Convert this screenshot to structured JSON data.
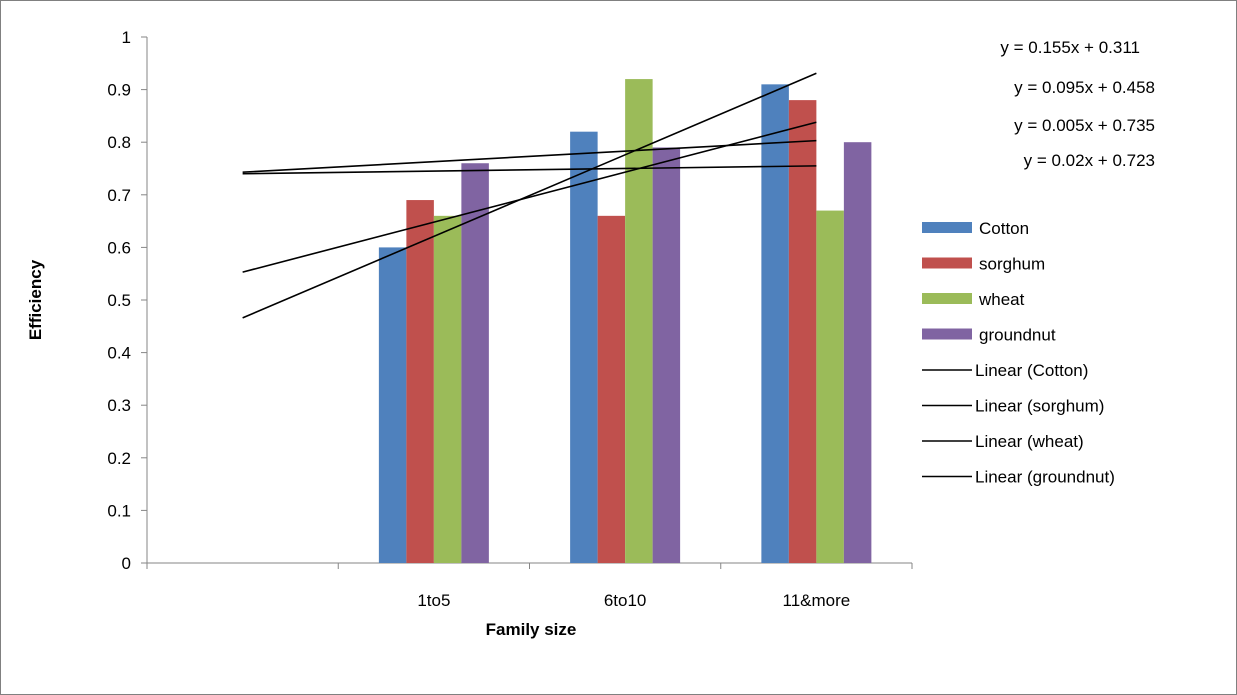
{
  "chart_data": {
    "type": "bar",
    "categories": [
      "",
      "1to5",
      "6to10",
      "11&more"
    ],
    "series": [
      {
        "name": "Cotton",
        "color": "#4f81bd",
        "values": [
          null,
          0.6,
          0.82,
          0.91
        ]
      },
      {
        "name": "sorghum",
        "color": "#c0504d",
        "values": [
          null,
          0.69,
          0.66,
          0.88
        ]
      },
      {
        "name": "wheat",
        "color": "#9bbb59",
        "values": [
          null,
          0.66,
          0.92,
          0.67
        ]
      },
      {
        "name": "groundnut",
        "color": "#8064a2",
        "values": [
          null,
          0.76,
          0.79,
          0.8
        ]
      }
    ],
    "trendlines": [
      {
        "name": "Linear (Cotton)",
        "slope": 0.155,
        "intercept": 0.311,
        "equation": "y = 0.155x + 0.311"
      },
      {
        "name": "Linear (sorghum)",
        "slope": 0.095,
        "intercept": 0.458,
        "equation": "y = 0.095x + 0.458"
      },
      {
        "name": "Linear (wheat)",
        "slope": 0.005,
        "intercept": 0.735,
        "equation": "y = 0.005x + 0.735"
      },
      {
        "name": "Linear (groundnut)",
        "slope": 0.02,
        "intercept": 0.723,
        "equation": "y = 0.02x + 0.723"
      }
    ],
    "xlabel": "Family size",
    "ylabel": "Efficiency",
    "ylim": [
      0,
      1
    ],
    "yticks": [
      "0",
      "0.1",
      "0.2",
      "0.3",
      "0.4",
      "0.5",
      "0.6",
      "0.7",
      "0.8",
      "0.9",
      "1"
    ],
    "grid": false,
    "legend_position": "right",
    "trendline_color": "#000000"
  }
}
